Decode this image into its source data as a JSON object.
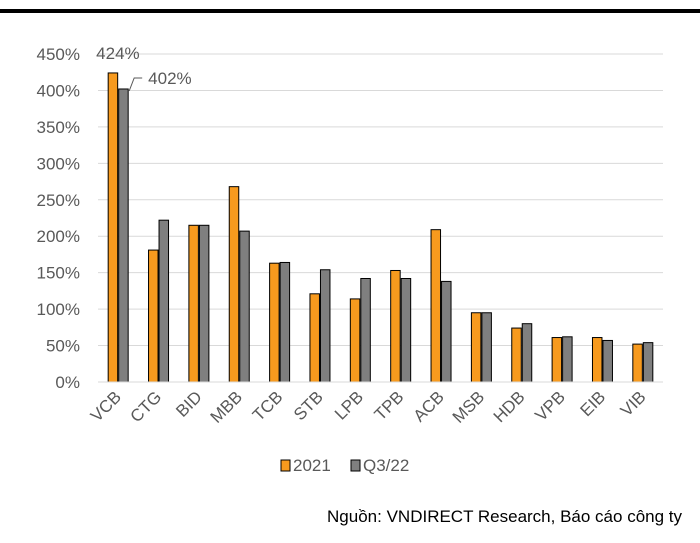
{
  "chart_data": {
    "type": "bar",
    "categories": [
      "VCB",
      "CTG",
      "BID",
      "MBB",
      "TCB",
      "STB",
      "LPB",
      "TPB",
      "ACB",
      "MSB",
      "HDB",
      "VPB",
      "EIB",
      "VIB"
    ],
    "series": [
      {
        "name": "2021",
        "color": "#F79A1E",
        "values": [
          424,
          181,
          215,
          268,
          163,
          121,
          114,
          153,
          209,
          95,
          74,
          61,
          61,
          52
        ]
      },
      {
        "name": "Q3/22",
        "color": "#7F7F7F",
        "values": [
          402,
          222,
          215,
          207,
          164,
          154,
          142,
          142,
          138,
          95,
          80,
          62,
          57,
          54
        ]
      }
    ],
    "ylim": [
      0,
      450
    ],
    "yticks": [
      0,
      50,
      100,
      150,
      200,
      250,
      300,
      350,
      400,
      450
    ],
    "ytick_labels": [
      "0%",
      "50%",
      "100%",
      "150%",
      "200%",
      "250%",
      "300%",
      "350%",
      "400%",
      "450%"
    ],
    "annotations": [
      {
        "text": "424%",
        "series": 0,
        "category": 0
      },
      {
        "text": "402%",
        "series": 1,
        "category": 0
      }
    ],
    "grid": true,
    "legend": "bottom-center"
  },
  "source": "Nguồn: VNDIRECT Research, Báo cáo công ty"
}
